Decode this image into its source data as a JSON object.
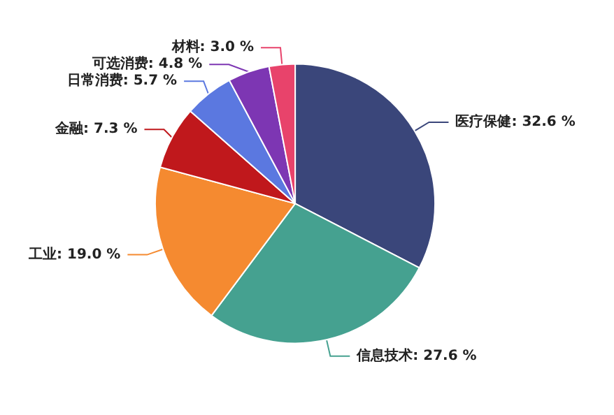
{
  "chart_data": {
    "type": "pie",
    "categories": [
      "医疗保健",
      "信息技术",
      "工业",
      "金融",
      "日常消费",
      "可选消费",
      "材料"
    ],
    "values": [
      32.6,
      27.6,
      19.0,
      7.3,
      5.7,
      4.8,
      3.0
    ],
    "value_labels": [
      "32.6 %",
      "27.6 %",
      "19.0 %",
      "7.3 %",
      "5.7 %",
      "4.8 %",
      "3.0 %"
    ],
    "colors": [
      "#3a467a",
      "#45a190",
      "#f58a30",
      "#c0181c",
      "#5b78e0",
      "#7d36b3",
      "#e8436b"
    ],
    "legend": false
  }
}
